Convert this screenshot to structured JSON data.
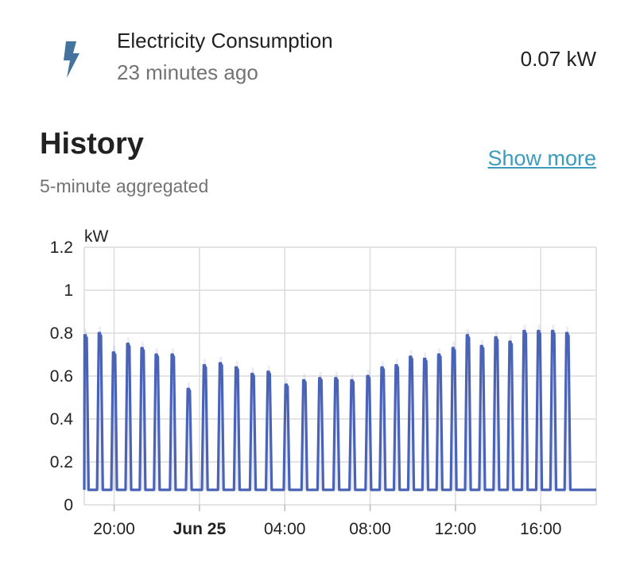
{
  "entity": {
    "icon": "lightning-bolt-icon",
    "name": "Electricity Consumption",
    "last_changed": "23 minutes ago",
    "state": "0.07 kW",
    "icon_color": "#44739e"
  },
  "history": {
    "title": "History",
    "subtitle": "5-minute aggregated",
    "show_more": "Show more",
    "link_color": "#3d9bbd"
  },
  "chart_data": {
    "type": "line",
    "ylabel": "kW",
    "ylim": [
      0,
      1.2
    ],
    "yticks": [
      "0",
      "0.2",
      "0.4",
      "0.6",
      "0.8",
      "1",
      "1.2"
    ],
    "xlim": [
      "2023-06-24T18:36",
      "2023-06-25T18:36"
    ],
    "xticks": [
      {
        "label": "20:00",
        "t": "2023-06-24T20:00",
        "bold": false
      },
      {
        "label": "Jun 25",
        "t": "2023-06-25T00:00",
        "bold": true
      },
      {
        "label": "04:00",
        "t": "2023-06-25T04:00",
        "bold": false
      },
      {
        "label": "08:00",
        "t": "2023-06-25T08:00",
        "bold": false
      },
      {
        "label": "12:00",
        "t": "2023-06-25T12:00",
        "bold": false
      },
      {
        "label": "16:00",
        "t": "2023-06-25T16:00",
        "bold": false
      }
    ],
    "baseline": 0.07,
    "series": [
      {
        "color": "#4a63b6",
        "peaks": [
          {
            "t": "2023-06-24T18:40",
            "v": 0.79
          },
          {
            "t": "2023-06-24T19:20",
            "v": 0.8
          },
          {
            "t": "2023-06-24T20:00",
            "v": 0.71
          },
          {
            "t": "2023-06-24T20:40",
            "v": 0.75
          },
          {
            "t": "2023-06-24T21:20",
            "v": 0.73
          },
          {
            "t": "2023-06-24T22:00",
            "v": 0.7
          },
          {
            "t": "2023-06-24T22:45",
            "v": 0.7
          },
          {
            "t": "2023-06-24T23:30",
            "v": 0.54
          },
          {
            "t": "2023-06-25T00:15",
            "v": 0.65
          },
          {
            "t": "2023-06-25T01:00",
            "v": 0.66
          },
          {
            "t": "2023-06-25T01:45",
            "v": 0.64
          },
          {
            "t": "2023-06-25T02:30",
            "v": 0.61
          },
          {
            "t": "2023-06-25T03:15",
            "v": 0.62
          },
          {
            "t": "2023-06-25T04:05",
            "v": 0.56
          },
          {
            "t": "2023-06-25T04:55",
            "v": 0.58
          },
          {
            "t": "2023-06-25T05:40",
            "v": 0.59
          },
          {
            "t": "2023-06-25T06:25",
            "v": 0.59
          },
          {
            "t": "2023-06-25T07:10",
            "v": 0.58
          },
          {
            "t": "2023-06-25T07:55",
            "v": 0.6
          },
          {
            "t": "2023-06-25T08:35",
            "v": 0.64
          },
          {
            "t": "2023-06-25T09:15",
            "v": 0.65
          },
          {
            "t": "2023-06-25T09:55",
            "v": 0.69
          },
          {
            "t": "2023-06-25T10:35",
            "v": 0.68
          },
          {
            "t": "2023-06-25T11:15",
            "v": 0.7
          },
          {
            "t": "2023-06-25T11:55",
            "v": 0.73
          },
          {
            "t": "2023-06-25T12:35",
            "v": 0.79
          },
          {
            "t": "2023-06-25T13:15",
            "v": 0.74
          },
          {
            "t": "2023-06-25T13:55",
            "v": 0.78
          },
          {
            "t": "2023-06-25T14:35",
            "v": 0.76
          },
          {
            "t": "2023-06-25T15:15",
            "v": 0.81
          },
          {
            "t": "2023-06-25T15:55",
            "v": 0.81
          },
          {
            "t": "2023-06-25T16:35",
            "v": 0.81
          },
          {
            "t": "2023-06-25T17:15",
            "v": 0.8
          }
        ]
      }
    ],
    "grid": true
  }
}
